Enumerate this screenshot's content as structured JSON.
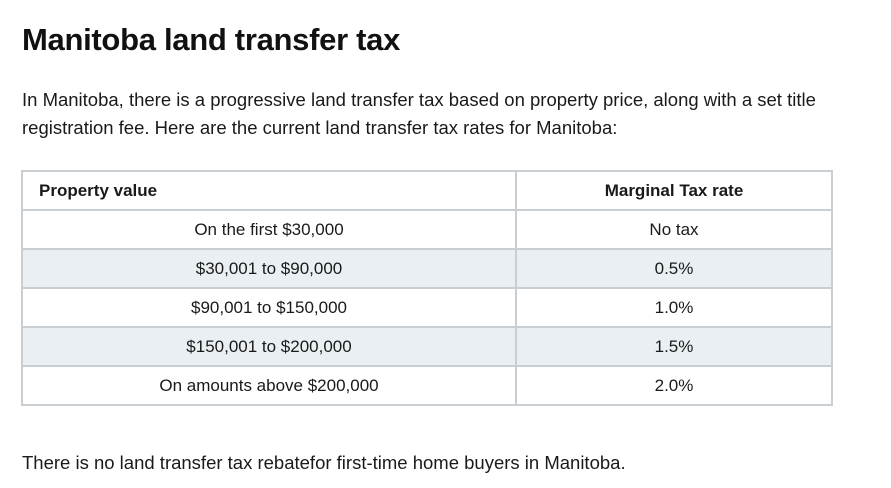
{
  "article": {
    "title": "Manitoba land transfer tax",
    "intro": "In Manitoba, there is a progressive land transfer tax based on property price, along with a set title registration fee. Here are the current land transfer tax rates for Manitoba:",
    "footer": "There is no land transfer tax rebatefor first-time home buyers in Manitoba."
  },
  "table": {
    "headers": [
      "Property value",
      "Marginal Tax rate"
    ],
    "rows": [
      [
        "On the first $30,000",
        "No tax"
      ],
      [
        "$30,001 to $90,000",
        "0.5%"
      ],
      [
        "$90,001 to $150,000",
        "1.0%"
      ],
      [
        "$150,001 to $200,000",
        "1.5%"
      ],
      [
        "On amounts above $200,000",
        "2.0%"
      ]
    ]
  }
}
